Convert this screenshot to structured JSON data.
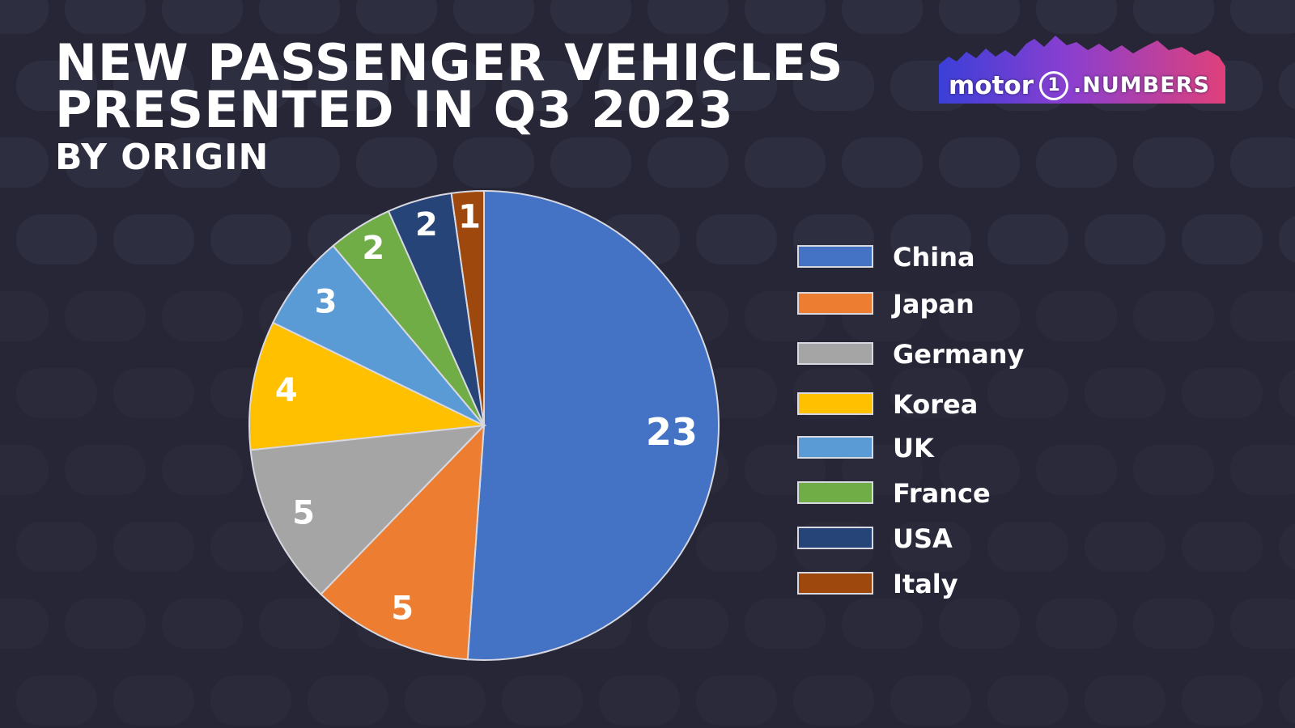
{
  "title_lines": [
    "NEW PASSENGER VEHICLES",
    "PRESENTED IN Q3 2023"
  ],
  "subtitle": "BY ORIGIN",
  "logo": {
    "brand": "motor",
    "one": "1",
    "suffix": ".NUMBERS"
  },
  "colors": {
    "background": "#262636",
    "slice_border": "#d8d8e0"
  },
  "chart_data": {
    "type": "pie",
    "title": "NEW PASSENGER VEHICLES PRESENTED IN Q3 2023",
    "subtitle": "BY ORIGIN",
    "start": "12 o'clock",
    "direction": "clockwise",
    "legend_position": "right",
    "slices": [
      {
        "label": "China",
        "value": 23,
        "color": "#4472c4"
      },
      {
        "label": "Japan",
        "value": 5,
        "color": "#ed7d31"
      },
      {
        "label": "Germany",
        "value": 5,
        "color": "#a5a5a5"
      },
      {
        "label": "Korea",
        "value": 4,
        "color": "#ffc000"
      },
      {
        "label": "UK",
        "value": 3,
        "color": "#5b9bd5"
      },
      {
        "label": "France",
        "value": 2,
        "color": "#70ad47"
      },
      {
        "label": "USA",
        "value": 2,
        "color": "#264478"
      },
      {
        "label": "Italy",
        "value": 1,
        "color": "#9e480e"
      }
    ]
  }
}
